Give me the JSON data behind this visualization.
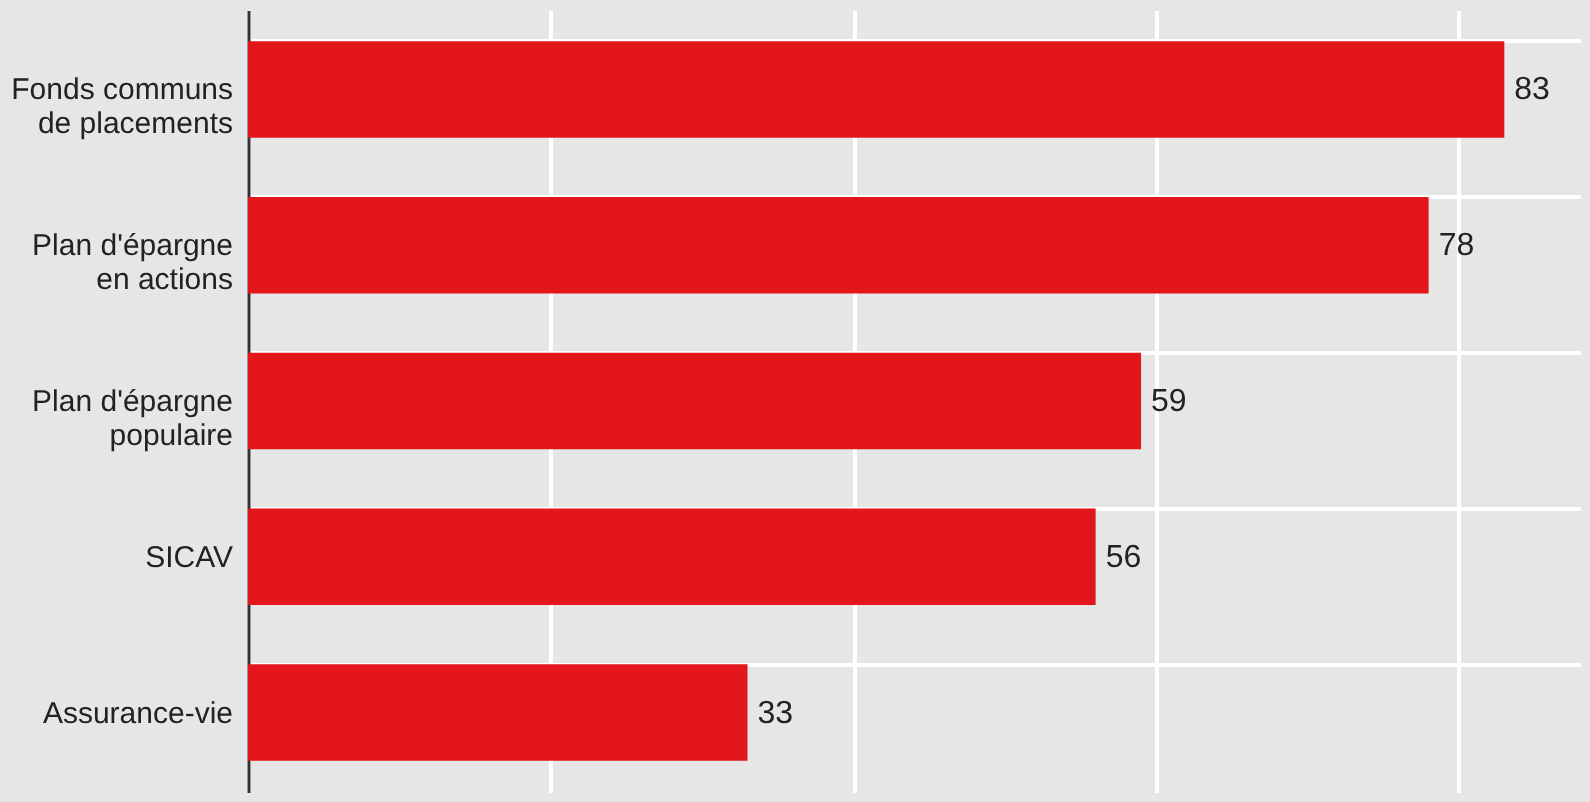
{
  "chart_data": {
    "type": "bar",
    "orientation": "horizontal",
    "categories": [
      "Fonds communs de placements",
      "Plan d'épargne en actions",
      "Plan d'épargne populaire",
      "SICAV",
      "Assurance-vie"
    ],
    "values": [
      83,
      78,
      59,
      56,
      33
    ],
    "color": "#e3171b",
    "xlim": [
      0,
      88
    ],
    "xticks": [
      {
        "value": 0,
        "label": null
      },
      {
        "value": 20,
        "label": null
      },
      {
        "value": 40,
        "label": null
      },
      {
        "value": 60,
        "label": null
      },
      {
        "value": 80,
        "label": null
      }
    ],
    "tick_labels": "y",
    "grid": true,
    "data_labels": true
  }
}
